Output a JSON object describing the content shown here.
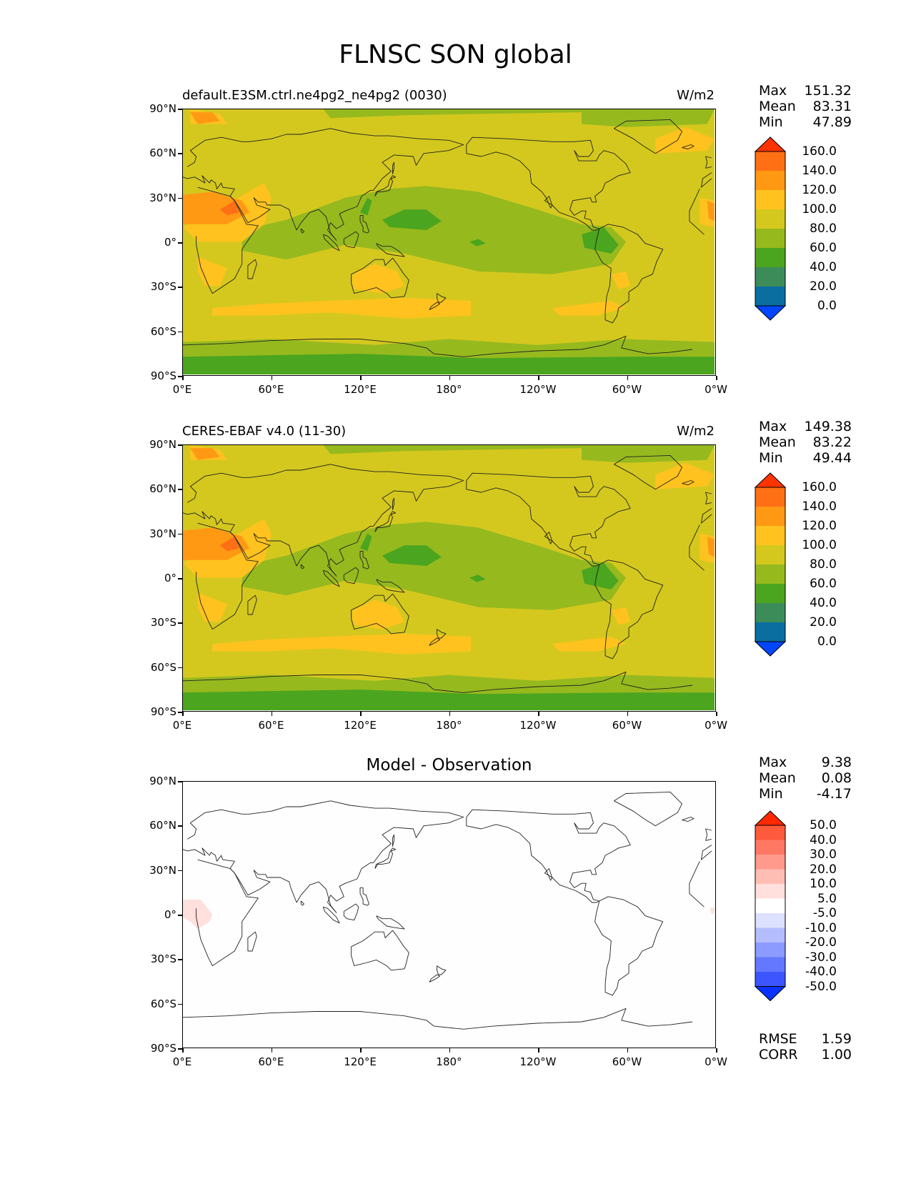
{
  "figure_title": "FLNSC SON global",
  "panels": [
    {
      "title_left": "default.E3SM.ctrl.ne4pg2_ne4pg2 (0030)",
      "title_right": "W/m2",
      "stats": [
        {
          "k": "Max",
          "v": "151.32"
        },
        {
          "k": "Mean",
          "v": "83.31"
        },
        {
          "k": "Min",
          "v": "47.89"
        }
      ],
      "colorbar_labels": [
        "160.0",
        "140.0",
        "120.0",
        "100.0",
        "80.0",
        "60.0",
        "40.0",
        "20.0",
        "0.0"
      ],
      "colorbar_colors": [
        "#ff3300",
        "#ff6f14",
        "#ff9914",
        "#ffc21e",
        "#d4c81e",
        "#96b91e",
        "#4ba51e",
        "#3c8c5a",
        "#0a6ea0",
        "#0046ff"
      ]
    },
    {
      "title_left": "CERES-EBAF v4.0 (11-30)",
      "title_right": "W/m2",
      "stats": [
        {
          "k": "Max",
          "v": "149.38"
        },
        {
          "k": "Mean",
          "v": "83.22"
        },
        {
          "k": "Min",
          "v": "49.44"
        }
      ],
      "colorbar_labels": [
        "160.0",
        "140.0",
        "120.0",
        "100.0",
        "80.0",
        "60.0",
        "40.0",
        "20.0",
        "0.0"
      ],
      "colorbar_colors": [
        "#ff3300",
        "#ff6f14",
        "#ff9914",
        "#ffc21e",
        "#d4c81e",
        "#96b91e",
        "#4ba51e",
        "#3c8c5a",
        "#0a6ea0",
        "#0046ff"
      ]
    },
    {
      "title_center": "Model - Observation",
      "stats": [
        {
          "k": "Max",
          "v": "9.38"
        },
        {
          "k": "Mean",
          "v": "0.08"
        },
        {
          "k": "Min",
          "v": "-4.17"
        }
      ],
      "colorbar_labels": [
        "50.0",
        "40.0",
        "30.0",
        "20.0",
        "10.0",
        "5.0",
        "-5.0",
        "-10.0",
        "-20.0",
        "-30.0",
        "-40.0",
        "-50.0"
      ],
      "colorbar_colors": [
        "#ff2800",
        "#ff5a3c",
        "#ff7864",
        "#ff9a8c",
        "#ffbeb4",
        "#ffe0dc",
        "#ffffff",
        "#dce1ff",
        "#b4beff",
        "#8c9bff",
        "#6478ff",
        "#3c55ff",
        "#0a32ff"
      ],
      "metrics": [
        {
          "k": "RMSE",
          "v": "1.59"
        },
        {
          "k": "CORR",
          "v": "1.00"
        }
      ]
    }
  ],
  "lat_labels": [
    "90°N",
    "60°N",
    "30°N",
    "0°",
    "30°S",
    "60°S",
    "90°S"
  ],
  "lon_labels": [
    "0°E",
    "60°E",
    "120°E",
    "180°",
    "120°W",
    "60°W",
    "0°W"
  ]
}
